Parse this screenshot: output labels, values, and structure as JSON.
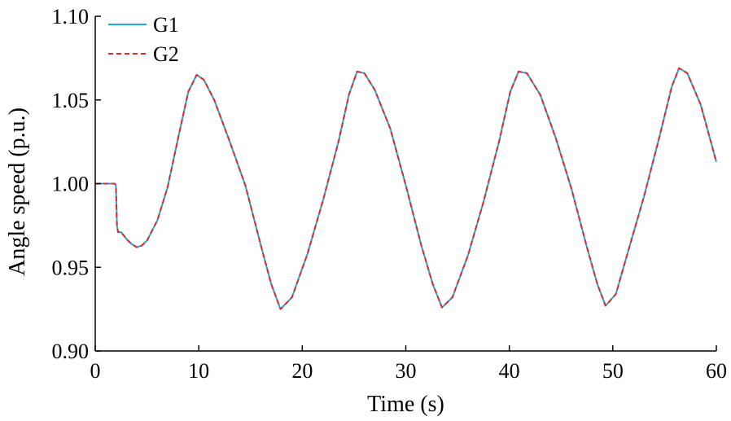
{
  "chart_data": {
    "type": "line",
    "title": "",
    "xlabel": "Time (s)",
    "ylabel": "Angle speed (p.u.)",
    "xlim": [
      0,
      60
    ],
    "ylim": [
      0.9,
      1.1
    ],
    "xticks": [
      0,
      10,
      20,
      30,
      40,
      50,
      60
    ],
    "xtick_labels": [
      "0",
      "10",
      "20",
      "30",
      "40",
      "50",
      "60"
    ],
    "yticks": [
      0.9,
      0.95,
      1.0,
      1.05,
      1.1
    ],
    "ytick_labels": [
      "0.90",
      "0.95",
      "1.00",
      "1.05",
      "1.10"
    ],
    "grid": false,
    "legend_position": "top-left",
    "series": [
      {
        "name": "G1",
        "color": "#1fa8d8",
        "style": "solid",
        "x": [
          0,
          1.8,
          1.9,
          2.0,
          2.1,
          2.2,
          2.5,
          3.0,
          3.5,
          4.0,
          4.5,
          5.0,
          6.0,
          7.0,
          8.0,
          9.0,
          9.8,
          10.5,
          11.5,
          13.0,
          14.5,
          16.0,
          17.0,
          17.9,
          19.0,
          20.5,
          22.0,
          23.5,
          24.5,
          25.3,
          26.0,
          27.0,
          28.5,
          30.0,
          31.5,
          32.6,
          33.5,
          34.5,
          36.0,
          37.5,
          39.0,
          40.1,
          40.9,
          41.7,
          43.0,
          44.5,
          46.0,
          47.5,
          48.5,
          49.3,
          50.3,
          51.5,
          53.0,
          54.5,
          55.7,
          56.4,
          57.2,
          58.5,
          60.0
        ],
        "values": [
          1.0,
          1.0,
          1.0,
          0.999,
          0.975,
          0.971,
          0.971,
          0.967,
          0.964,
          0.962,
          0.963,
          0.966,
          0.978,
          0.998,
          1.027,
          1.055,
          1.065,
          1.062,
          1.05,
          1.025,
          0.999,
          0.963,
          0.94,
          0.925,
          0.932,
          0.958,
          0.99,
          1.025,
          1.053,
          1.067,
          1.066,
          1.056,
          1.033,
          0.999,
          0.963,
          0.94,
          0.926,
          0.932,
          0.957,
          0.989,
          1.025,
          1.055,
          1.067,
          1.066,
          1.053,
          1.027,
          0.997,
          0.962,
          0.94,
          0.927,
          0.934,
          0.96,
          0.992,
          1.028,
          1.058,
          1.069,
          1.066,
          1.047,
          1.013
        ]
      },
      {
        "name": "G2",
        "color": "#e4262c",
        "style": "dashed",
        "x": [
          0,
          1.8,
          1.9,
          2.0,
          2.1,
          2.2,
          2.5,
          3.0,
          3.5,
          4.0,
          4.5,
          5.0,
          6.0,
          7.0,
          8.0,
          9.0,
          9.8,
          10.5,
          11.5,
          13.0,
          14.5,
          16.0,
          17.0,
          17.9,
          19.0,
          20.5,
          22.0,
          23.5,
          24.5,
          25.3,
          26.0,
          27.0,
          28.5,
          30.0,
          31.5,
          32.6,
          33.5,
          34.5,
          36.0,
          37.5,
          39.0,
          40.1,
          40.9,
          41.7,
          43.0,
          44.5,
          46.0,
          47.5,
          48.5,
          49.3,
          50.3,
          51.5,
          53.0,
          54.5,
          55.7,
          56.4,
          57.2,
          58.5,
          60.0
        ],
        "values": [
          1.0,
          1.0,
          1.0,
          0.999,
          0.975,
          0.971,
          0.971,
          0.967,
          0.964,
          0.962,
          0.963,
          0.966,
          0.978,
          0.998,
          1.027,
          1.055,
          1.065,
          1.062,
          1.05,
          1.025,
          0.999,
          0.963,
          0.94,
          0.925,
          0.932,
          0.958,
          0.99,
          1.025,
          1.053,
          1.067,
          1.066,
          1.056,
          1.033,
          0.999,
          0.963,
          0.94,
          0.926,
          0.932,
          0.957,
          0.989,
          1.025,
          1.055,
          1.067,
          1.066,
          1.053,
          1.027,
          0.997,
          0.962,
          0.94,
          0.927,
          0.934,
          0.96,
          0.992,
          1.028,
          1.058,
          1.069,
          1.066,
          1.047,
          1.013
        ]
      }
    ]
  }
}
